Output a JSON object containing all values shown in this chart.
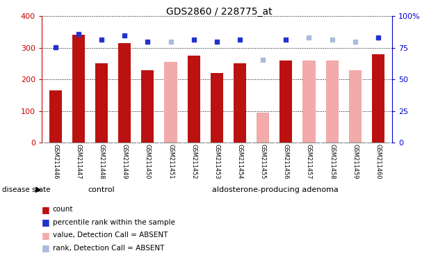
{
  "title": "GDS2860 / 228775_at",
  "samples": [
    "GSM211446",
    "GSM211447",
    "GSM211448",
    "GSM211449",
    "GSM211450",
    "GSM211451",
    "GSM211452",
    "GSM211453",
    "GSM211454",
    "GSM211455",
    "GSM211456",
    "GSM211457",
    "GSM211458",
    "GSM211459",
    "GSM211460"
  ],
  "count_values": [
    165,
    340,
    250,
    315,
    228,
    null,
    275,
    220,
    250,
    null,
    260,
    null,
    null,
    null,
    280
  ],
  "absent_values": [
    null,
    null,
    null,
    null,
    null,
    255,
    null,
    null,
    null,
    95,
    null,
    260,
    260,
    230,
    null
  ],
  "percentile_present": [
    302,
    344,
    326,
    338,
    320,
    null,
    326,
    320,
    326,
    null,
    326,
    null,
    null,
    null,
    332
  ],
  "percentile_absent": [
    null,
    null,
    null,
    null,
    null,
    320,
    null,
    null,
    null,
    263,
    null,
    332,
    325,
    318,
    null
  ],
  "control_count": 5,
  "left_ylim": [
    0,
    400
  ],
  "right_ylim": [
    0,
    100
  ],
  "left_yticks": [
    0,
    100,
    200,
    300,
    400
  ],
  "right_yticks": [
    0,
    25,
    50,
    75,
    100
  ],
  "right_yticklabels": [
    "0",
    "25",
    "50",
    "75",
    "100%"
  ],
  "bar_color_present": "#bb1111",
  "bar_color_absent": "#f2aaaa",
  "dot_color_present": "#2233cc",
  "dot_color_absent": "#aabbdd",
  "bar_width": 0.55,
  "grid_color": "black",
  "bg_color": "#ffffff",
  "plot_bg": "#ffffff",
  "axis_color_left": "#cc0000",
  "axis_color_right": "#0000cc",
  "group_bg": "#88ee88",
  "label_bg": "#cccccc",
  "disease_state_label": "disease state",
  "legend_labels": [
    "count",
    "percentile rank within the sample",
    "value, Detection Call = ABSENT",
    "rank, Detection Call = ABSENT"
  ],
  "legend_colors": [
    "#bb1111",
    "#2233cc",
    "#f2aaaa",
    "#aabbdd"
  ]
}
